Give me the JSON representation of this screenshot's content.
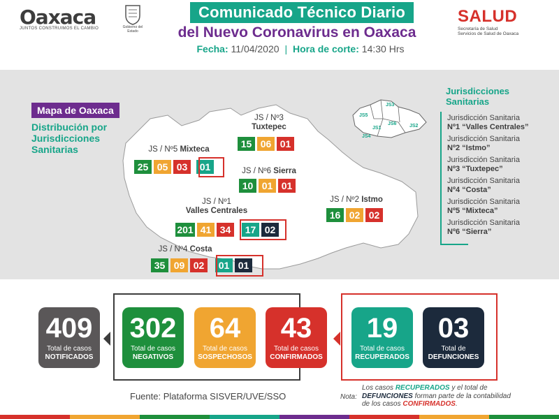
{
  "header": {
    "brand_left": "Oaxaca",
    "brand_left_tagline": "JUNTOS CONSTRUIMOS EL CAMBIO",
    "seal_caption": "Gobierno del Estado",
    "title_line1": "Comunicado Técnico Diario",
    "title_line2": "del Nuevo Coronavirus en Oaxaca",
    "date_label": "Fecha:",
    "date_value": "11/04/2020",
    "cut_label": "Hora de corte:",
    "cut_value": "14:30 Hrs",
    "brand_right": "SALUD",
    "brand_right_sub1": "Secretaría de Salud",
    "brand_right_sub2": "Servicios de Salud de Oaxaca"
  },
  "map": {
    "title": "Mapa de Oaxaca",
    "description": "Distribución por Jurisdicciones Sanitarias"
  },
  "jurisdictions": [
    {
      "label": "JS / Nº3",
      "name": "Tuxtepec",
      "values": [
        "15",
        "06",
        "01"
      ]
    },
    {
      "label": "JS / Nº5",
      "name": "Mixteca",
      "values": [
        "25",
        "05",
        "03",
        "01"
      ]
    },
    {
      "label": "JS / Nº6",
      "name": "Sierra",
      "values": [
        "10",
        "01",
        "01"
      ]
    },
    {
      "label": "JS / Nº2",
      "name": "Istmo",
      "values": [
        "16",
        "02",
        "02"
      ]
    },
    {
      "label": "JS / Nº1",
      "name": "Valles Centrales",
      "values": [
        "201",
        "41",
        "34",
        "17",
        "02"
      ]
    },
    {
      "label": "JS / Nº4",
      "name": "Costa",
      "values": [
        "35",
        "09",
        "02",
        "01",
        "01"
      ]
    }
  ],
  "legend": {
    "heading_line1": "Jurisdicciones",
    "heading_line2": "Sanitarias",
    "items": [
      {
        "l1": "Jurisdicción Sanitaria",
        "l2": "Nº1 “Valles Centrales”"
      },
      {
        "l1": "Jurisdicción Sanitaria",
        "l2": "Nº2 “Istmo”"
      },
      {
        "l1": "Jurisdicción Sanitaria",
        "l2": "Nº3 “Tuxtepec”"
      },
      {
        "l1": "Jurisdicción Sanitaria",
        "l2": "Nº4 “Costa”"
      },
      {
        "l1": "Jurisdicción Sanitaria",
        "l2": "Nº5 “Mixteca”"
      },
      {
        "l1": "Jurisdicción Sanitaria",
        "l2": "Nº6 “Sierra”"
      }
    ],
    "mini_map_labels": [
      "JS3",
      "JS5",
      "JS1",
      "JS6",
      "JS2",
      "JS4"
    ]
  },
  "stats": [
    {
      "value": "409",
      "l1": "Total de casos",
      "l2": "NOTIFICADOS",
      "color": "#5a5758"
    },
    {
      "value": "302",
      "l1": "Total de casos",
      "l2": "NEGATIVOS",
      "color": "#1e8f3c"
    },
    {
      "value": "64",
      "l1": "Total de casos",
      "l2": "SOSPECHOSOS",
      "color": "#f0a531"
    },
    {
      "value": "43",
      "l1": "Total de casos",
      "l2": "CONFIRMADOS",
      "color": "#d6312b"
    },
    {
      "value": "19",
      "l1": "Total de casos",
      "l2": "RECUPERADOS",
      "color": "#17a589"
    },
    {
      "value": "03",
      "l1": "Total de",
      "l2": "DEFUNCIONES",
      "color": "#1c2a3c"
    }
  ],
  "footer": {
    "source": "Fuente: Plataforma SISVER/UVE/SSO",
    "note_label": "Nota:",
    "note_p1": "Los casos ",
    "note_recuperados": "RECUPERADOS",
    "note_p2": " y el total de ",
    "note_defunciones": "DEFUNCIONES",
    "note_p3": " forman parte de la contabilidad de los casos ",
    "note_confirmados": "CONFIRMADOS",
    "note_p4": "."
  },
  "colors": {
    "teal": "#17a589",
    "purple": "#6d2c8e",
    "green": "#1e8f3c",
    "yellow": "#f0a531",
    "red": "#d6312b",
    "navy": "#1c2a3c",
    "grey": "#5a5758"
  }
}
